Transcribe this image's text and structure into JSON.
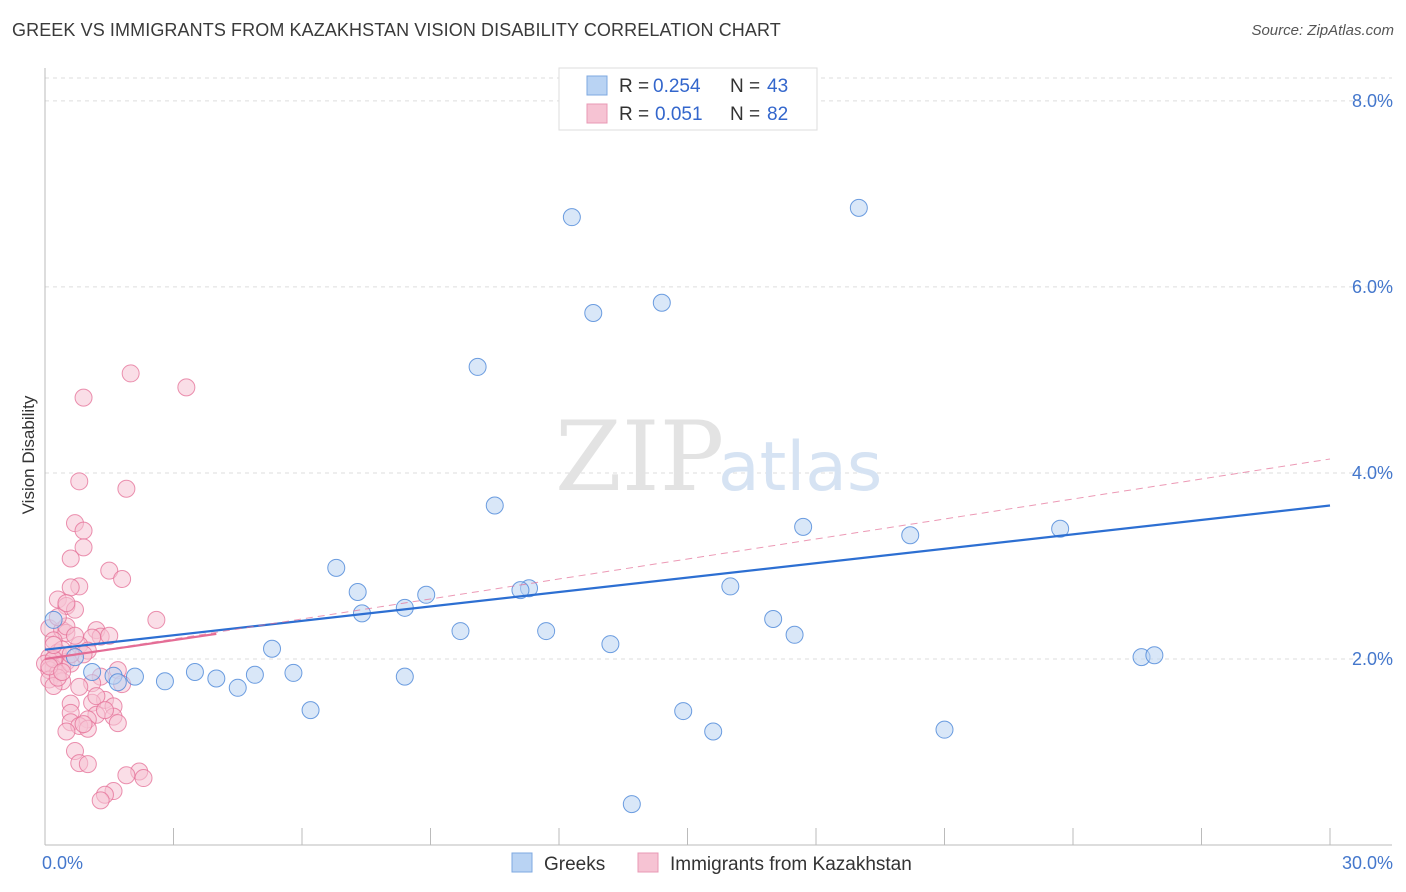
{
  "title": "GREEK VS IMMIGRANTS FROM KAZAKHSTAN VISION DISABILITY CORRELATION CHART",
  "source": "Source: ZipAtlas.com",
  "watermark": {
    "zip": "ZIP",
    "atlas": "atlas"
  },
  "colors": {
    "blue": "#4a86d8",
    "blue_fill": "#b9d3f3",
    "pink": "#e46d96",
    "pink_fill": "#f6c3d3",
    "grid": "#dddddd",
    "axis_label": "#4477cc"
  },
  "legend": {
    "series": [
      {
        "name": "Greeks",
        "r_label": "R =",
        "r": "0.254",
        "n_label": "N =",
        "n": "43"
      },
      {
        "name": "Immigrants from Kazakhstan",
        "r_label": "R =",
        "r": "0.051",
        "n_label": "N =",
        "n": "82"
      }
    ]
  },
  "chart_data": {
    "type": "scatter",
    "title": "GREEK VS IMMIGRANTS FROM KAZAKHSTAN VISION DISABILITY CORRELATION CHART",
    "xlabel": "",
    "ylabel": "Vision Disability",
    "xlim": [
      0,
      30
    ],
    "ylim": [
      0,
      8.3
    ],
    "x_tick_labels": [
      "0.0%",
      "30.0%"
    ],
    "y_ticks": [
      2,
      4,
      6,
      8
    ],
    "y_tick_labels": [
      "2.0%",
      "4.0%",
      "6.0%",
      "8.0%"
    ],
    "series": [
      {
        "name": "Greeks",
        "points": [
          [
            12.3,
            6.75
          ],
          [
            19.0,
            6.85
          ],
          [
            12.8,
            5.72
          ],
          [
            14.4,
            5.83
          ],
          [
            10.1,
            5.14
          ],
          [
            10.5,
            3.65
          ],
          [
            17.7,
            3.42
          ],
          [
            20.2,
            3.33
          ],
          [
            23.7,
            3.4
          ],
          [
            6.8,
            2.98
          ],
          [
            7.3,
            2.72
          ],
          [
            8.9,
            2.69
          ],
          [
            11.3,
            2.76
          ],
          [
            11.1,
            2.74
          ],
          [
            16.0,
            2.78
          ],
          [
            7.4,
            2.49
          ],
          [
            8.4,
            2.55
          ],
          [
            9.7,
            2.3
          ],
          [
            11.7,
            2.3
          ],
          [
            13.2,
            2.16
          ],
          [
            17.0,
            2.43
          ],
          [
            17.5,
            2.26
          ],
          [
            5.3,
            2.11
          ],
          [
            25.6,
            2.02
          ],
          [
            25.9,
            2.04
          ],
          [
            1.1,
            1.86
          ],
          [
            2.1,
            1.81
          ],
          [
            2.8,
            1.76
          ],
          [
            3.5,
            1.86
          ],
          [
            4.0,
            1.79
          ],
          [
            4.5,
            1.69
          ],
          [
            4.9,
            1.83
          ],
          [
            5.8,
            1.85
          ],
          [
            8.4,
            1.81
          ],
          [
            1.6,
            1.82
          ],
          [
            1.7,
            1.75
          ],
          [
            6.2,
            1.45
          ],
          [
            14.9,
            1.44
          ],
          [
            15.6,
            1.22
          ],
          [
            21.0,
            1.24
          ],
          [
            13.7,
            0.44
          ],
          [
            0.2,
            2.42
          ],
          [
            0.7,
            2.02
          ]
        ]
      },
      {
        "name": "Immigrants from Kazakhstan",
        "points": [
          [
            2.0,
            5.07
          ],
          [
            3.3,
            4.92
          ],
          [
            0.9,
            4.81
          ],
          [
            0.8,
            3.91
          ],
          [
            1.9,
            3.83
          ],
          [
            0.7,
            3.46
          ],
          [
            0.9,
            3.38
          ],
          [
            0.9,
            3.2
          ],
          [
            0.6,
            3.08
          ],
          [
            1.5,
            2.95
          ],
          [
            1.8,
            2.86
          ],
          [
            0.8,
            2.78
          ],
          [
            0.6,
            2.77
          ],
          [
            0.3,
            2.64
          ],
          [
            0.5,
            2.57
          ],
          [
            0.7,
            2.53
          ],
          [
            2.6,
            2.42
          ],
          [
            0.1,
            2.33
          ],
          [
            0.4,
            2.31
          ],
          [
            1.2,
            2.31
          ],
          [
            0.5,
            2.28
          ],
          [
            1.3,
            2.24
          ],
          [
            1.1,
            2.23
          ],
          [
            0.2,
            2.2
          ],
          [
            0.8,
            2.15
          ],
          [
            1.0,
            2.09
          ],
          [
            0.3,
            2.07
          ],
          [
            0.1,
            2.02
          ],
          [
            0.2,
            1.99
          ],
          [
            0.5,
            1.97
          ],
          [
            0.0,
            1.95
          ],
          [
            0.4,
            1.93
          ],
          [
            0.2,
            1.9
          ],
          [
            0.1,
            1.88
          ],
          [
            0.3,
            1.85
          ],
          [
            1.7,
            1.88
          ],
          [
            1.3,
            1.81
          ],
          [
            0.1,
            1.78
          ],
          [
            0.4,
            1.76
          ],
          [
            1.1,
            1.74
          ],
          [
            1.8,
            1.73
          ],
          [
            0.2,
            1.71
          ],
          [
            1.4,
            1.56
          ],
          [
            1.1,
            1.53
          ],
          [
            0.6,
            1.52
          ],
          [
            1.6,
            1.49
          ],
          [
            0.6,
            1.42
          ],
          [
            1.2,
            1.4
          ],
          [
            1.6,
            1.38
          ],
          [
            1.0,
            1.35
          ],
          [
            0.6,
            1.32
          ],
          [
            1.7,
            1.31
          ],
          [
            0.8,
            1.28
          ],
          [
            1.0,
            1.25
          ],
          [
            0.5,
            1.22
          ],
          [
            0.7,
            1.01
          ],
          [
            0.8,
            0.88
          ],
          [
            1.0,
            0.87
          ],
          [
            2.2,
            0.79
          ],
          [
            1.9,
            0.75
          ],
          [
            2.3,
            0.72
          ],
          [
            1.6,
            0.58
          ],
          [
            1.4,
            0.54
          ],
          [
            1.3,
            0.48
          ],
          [
            0.4,
            2.1
          ],
          [
            0.2,
            2.0
          ],
          [
            0.6,
            1.95
          ],
          [
            0.3,
            1.8
          ],
          [
            0.9,
            2.05
          ],
          [
            1.5,
            2.25
          ],
          [
            0.5,
            2.35
          ],
          [
            0.7,
            2.25
          ],
          [
            0.2,
            2.15
          ],
          [
            0.1,
            1.92
          ],
          [
            0.4,
            1.86
          ],
          [
            0.6,
            2.05
          ],
          [
            1.2,
            1.6
          ],
          [
            0.3,
            2.45
          ],
          [
            0.8,
            1.7
          ],
          [
            0.5,
            2.6
          ],
          [
            1.4,
            1.45
          ],
          [
            0.9,
            1.3
          ]
        ]
      }
    ],
    "trend_lines": [
      {
        "series": "Greeks",
        "style": "solid",
        "x": [
          0,
          30
        ],
        "y": [
          2.1,
          3.65
        ]
      },
      {
        "series": "Immigrants from Kazakhstan",
        "style": "solid",
        "x": [
          0,
          4.0
        ],
        "y": [
          2.0,
          2.27
        ]
      },
      {
        "series": "Immigrants from Kazakhstan",
        "style": "dashed",
        "x": [
          0,
          30
        ],
        "y": [
          2.0,
          4.15
        ]
      }
    ],
    "grid": true,
    "legend_position": "top-center"
  }
}
